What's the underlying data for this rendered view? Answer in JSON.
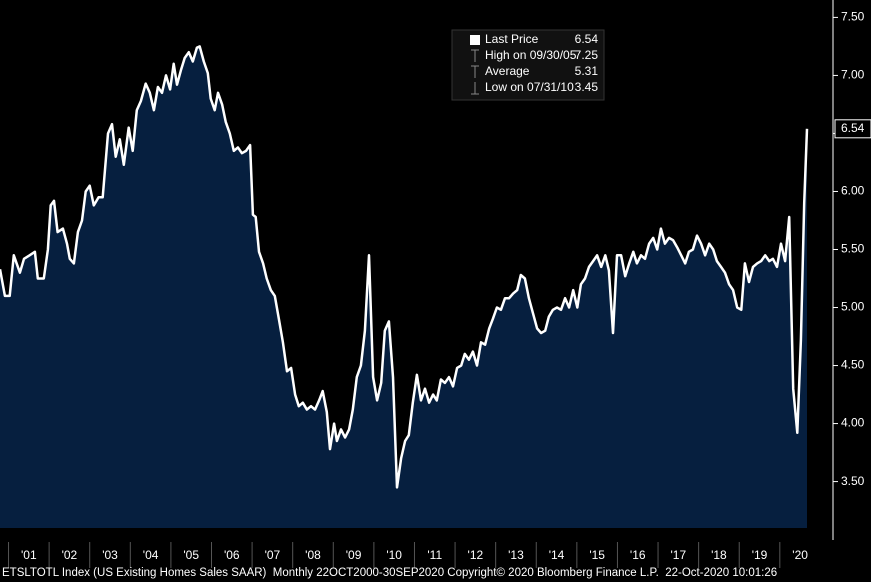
{
  "chart_data": {
    "type": "area",
    "footer": "ETSLTOTL Index (US Existing Homes Sales SAAR)  Monthly 22OCT2000-30SEP2020 Copyright© 2020 Bloomberg Finance L.P.  22-Oct-2020 10:01:26",
    "legend": [
      {
        "label": "Last Price",
        "value": 6.54
      },
      {
        "label": "High on 09/30/05",
        "value": 7.25
      },
      {
        "label": "Average",
        "value": 5.31
      },
      {
        "label": "Low on 07/31/10",
        "value": 3.45
      }
    ],
    "line_color": "#ffffff",
    "fill_color": "#061f3f",
    "xlim": [
      2000.79,
      2021.31
    ],
    "xticks": [
      {
        "value": 2001,
        "label": "'01"
      },
      {
        "value": 2002,
        "label": "'02"
      },
      {
        "value": 2003,
        "label": "'03"
      },
      {
        "value": 2004,
        "label": "'04"
      },
      {
        "value": 2005,
        "label": "'05"
      },
      {
        "value": 2006,
        "label": "'06"
      },
      {
        "value": 2007,
        "label": "'07"
      },
      {
        "value": 2008,
        "label": "'08"
      },
      {
        "value": 2009,
        "label": "'09"
      },
      {
        "value": 2010,
        "label": "'10"
      },
      {
        "value": 2011,
        "label": "'11"
      },
      {
        "value": 2012,
        "label": "'12"
      },
      {
        "value": 2013,
        "label": "'13"
      },
      {
        "value": 2014,
        "label": "'14"
      },
      {
        "value": 2015,
        "label": "'15"
      },
      {
        "value": 2016,
        "label": "'16"
      },
      {
        "value": 2017,
        "label": "'17"
      },
      {
        "value": 2018,
        "label": "'18"
      },
      {
        "value": 2019,
        "label": "'19"
      },
      {
        "value": 2020,
        "label": "'20"
      }
    ],
    "ylim": [
      3.1,
      7.65
    ],
    "yticks": [
      {
        "value": 3.5,
        "label": "3.50"
      },
      {
        "value": 4.0,
        "label": "4.00"
      },
      {
        "value": 4.5,
        "label": "4.50"
      },
      {
        "value": 5.0,
        "label": "5.00"
      },
      {
        "value": 5.5,
        "label": "5.50"
      },
      {
        "value": 6.0,
        "label": "6.00"
      },
      {
        "value": 6.5,
        "label": "6.50"
      },
      {
        "value": 7.0,
        "label": "7.00"
      },
      {
        "value": 7.5,
        "label": "7.50"
      }
    ],
    "x": [
      2000.79,
      2000.91,
      2001.03,
      2001.13,
      2001.28,
      2001.38,
      2001.52,
      2001.65,
      2001.72,
      2001.87,
      2001.97,
      2002.04,
      2002.12,
      2002.21,
      2002.34,
      2002.44,
      2002.51,
      2002.61,
      2002.71,
      2002.81,
      2002.9,
      2003.0,
      2003.1,
      2003.22,
      2003.32,
      2003.45,
      2003.55,
      2003.64,
      2003.74,
      2003.84,
      2003.96,
      2004.06,
      2004.16,
      2004.26,
      2004.38,
      2004.48,
      2004.58,
      2004.68,
      2004.78,
      2004.88,
      2004.98,
      2005.07,
      2005.15,
      2005.25,
      2005.34,
      2005.44,
      2005.54,
      2005.64,
      2005.71,
      2005.81,
      2005.91,
      2005.98,
      2006.08,
      2006.16,
      2006.26,
      2006.35,
      2006.45,
      2006.55,
      2006.65,
      2006.75,
      2006.85,
      2006.95,
      2007.02,
      2007.09,
      2007.17,
      2007.27,
      2007.36,
      2007.46,
      2007.56,
      2007.66,
      2007.76,
      2007.86,
      2007.96,
      2008.06,
      2008.15,
      2008.25,
      2008.35,
      2008.45,
      2008.55,
      2008.65,
      2008.74,
      2008.84,
      2008.92,
      2009.02,
      2009.09,
      2009.19,
      2009.29,
      2009.39,
      2009.48,
      2009.58,
      2009.68,
      2009.78,
      2009.88,
      2009.98,
      2010.08,
      2010.18,
      2010.27,
      2010.37,
      2010.47,
      2010.57,
      2010.67,
      2010.77,
      2010.86,
      2010.96,
      2011.06,
      2011.16,
      2011.26,
      2011.36,
      2011.46,
      2011.55,
      2011.65,
      2011.75,
      2011.85,
      2011.95,
      2012.05,
      2012.15,
      2012.24,
      2012.34,
      2012.44,
      2012.54,
      2012.64,
      2012.74,
      2012.84,
      2012.93,
      2013.03,
      2013.13,
      2013.23,
      2013.33,
      2013.43,
      2013.53,
      2013.62,
      2013.72,
      2013.82,
      2013.92,
      2014.02,
      2014.12,
      2014.22,
      2014.31,
      2014.41,
      2014.51,
      2014.61,
      2014.71,
      2014.81,
      2014.91,
      2015.01,
      2015.1,
      2015.2,
      2015.3,
      2015.4,
      2015.5,
      2015.6,
      2015.7,
      2015.79,
      2015.89,
      2015.99,
      2016.09,
      2016.19,
      2016.29,
      2016.39,
      2016.48,
      2016.58,
      2016.68,
      2016.78,
      2016.88,
      2016.98,
      2017.07,
      2017.17,
      2017.27,
      2017.37,
      2017.47,
      2017.57,
      2017.67,
      2017.76,
      2017.86,
      2017.96,
      2018.06,
      2018.16,
      2018.26,
      2018.36,
      2018.45,
      2018.55,
      2018.65,
      2018.75,
      2018.85,
      2018.95,
      2019.05,
      2019.14,
      2019.24,
      2019.34,
      2019.44,
      2019.54,
      2019.64,
      2019.74,
      2019.83,
      2019.93,
      2020.03,
      2020.13,
      2020.23,
      2020.33,
      2020.43,
      2020.52,
      2020.6,
      2020.67
    ],
    "series": [
      {
        "name": "Last Price",
        "values": [
          5.33,
          5.1,
          5.1,
          5.45,
          5.3,
          5.42,
          5.45,
          5.48,
          5.25,
          5.25,
          5.5,
          5.88,
          5.92,
          5.65,
          5.68,
          5.55,
          5.42,
          5.38,
          5.65,
          5.75,
          6.0,
          6.05,
          5.88,
          5.95,
          5.95,
          6.5,
          6.58,
          6.3,
          6.45,
          6.23,
          6.55,
          6.35,
          6.7,
          6.78,
          6.93,
          6.85,
          6.7,
          6.9,
          6.85,
          7.0,
          6.88,
          7.1,
          6.92,
          7.05,
          7.15,
          7.2,
          7.12,
          7.24,
          7.25,
          7.12,
          7.02,
          6.8,
          6.7,
          6.85,
          6.75,
          6.6,
          6.5,
          6.35,
          6.38,
          6.33,
          6.35,
          6.4,
          5.8,
          5.78,
          5.48,
          5.38,
          5.25,
          5.15,
          5.1,
          4.9,
          4.7,
          4.45,
          4.48,
          4.25,
          4.15,
          4.18,
          4.12,
          4.15,
          4.12,
          4.2,
          4.28,
          4.1,
          3.78,
          4.0,
          3.85,
          3.95,
          3.88,
          3.95,
          4.12,
          4.4,
          4.5,
          4.8,
          5.45,
          4.4,
          4.2,
          4.35,
          4.8,
          4.88,
          4.4,
          3.45,
          3.7,
          3.85,
          3.9,
          4.18,
          4.42,
          4.2,
          4.3,
          4.18,
          4.25,
          4.2,
          4.38,
          4.35,
          4.4,
          4.32,
          4.48,
          4.5,
          4.6,
          4.55,
          4.62,
          4.5,
          4.7,
          4.68,
          4.82,
          4.9,
          5.0,
          4.98,
          5.08,
          5.08,
          5.12,
          5.15,
          5.28,
          5.25,
          5.08,
          4.95,
          4.82,
          4.78,
          4.8,
          4.92,
          4.98,
          5.0,
          4.98,
          5.08,
          5.0,
          5.15,
          5.0,
          5.2,
          5.25,
          5.35,
          5.4,
          5.45,
          5.35,
          5.45,
          5.32,
          4.78,
          5.45,
          5.45,
          5.27,
          5.38,
          5.48,
          5.38,
          5.45,
          5.42,
          5.55,
          5.6,
          5.5,
          5.68,
          5.55,
          5.6,
          5.58,
          5.52,
          5.45,
          5.38,
          5.48,
          5.5,
          5.62,
          5.55,
          5.45,
          5.55,
          5.5,
          5.4,
          5.35,
          5.3,
          5.2,
          5.15,
          5.0,
          4.98,
          5.38,
          5.22,
          5.35,
          5.38,
          5.4,
          5.45,
          5.4,
          5.42,
          5.35,
          5.55,
          5.4,
          5.78,
          4.3,
          3.92,
          4.72,
          5.9,
          6.54
        ]
      }
    ]
  }
}
